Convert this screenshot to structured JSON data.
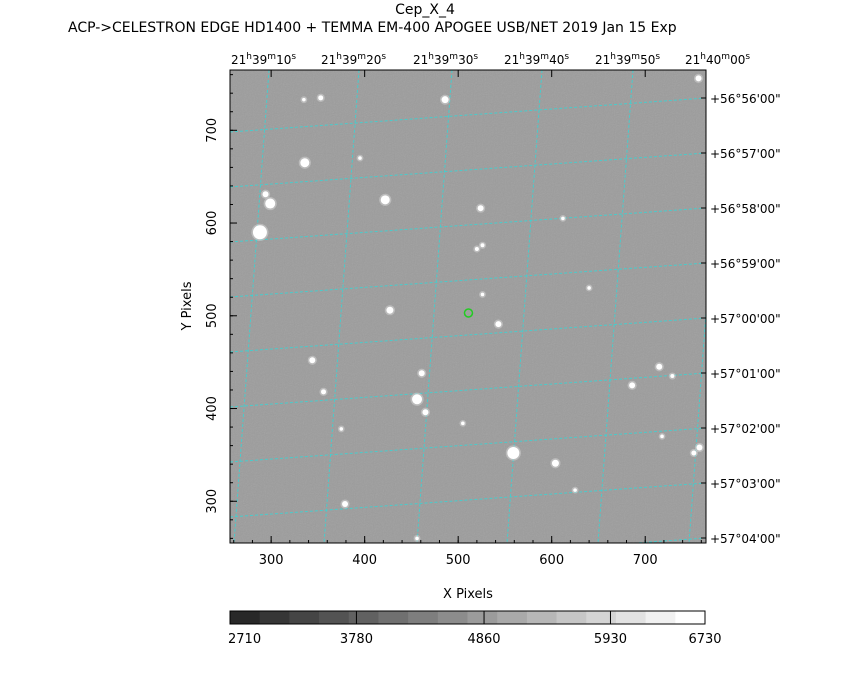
{
  "chart_data": {
    "type": "heatmap",
    "title": "Cep_X_4",
    "subtitle": "ACP->CELESTRON EDGE HD1400 + TEMMA EM-400 APOGEE USB/NET   2019 Jan 15    Exp",
    "xlabel": "X Pixels",
    "ylabel": "Y Pixels",
    "xlim": [
      256,
      765
    ],
    "ylim": [
      255,
      765
    ],
    "x_ticks": [
      300,
      400,
      500,
      600,
      700
    ],
    "y_ticks": [
      300,
      400,
      500,
      600,
      700
    ],
    "ra_labels": [
      {
        "h": "21",
        "m": "39",
        "s": "10"
      },
      {
        "h": "21",
        "m": "39",
        "s": "20"
      },
      {
        "h": "21",
        "m": "39",
        "s": "30"
      },
      {
        "h": "21",
        "m": "39",
        "s": "40"
      },
      {
        "h": "21",
        "m": "39",
        "s": "50"
      },
      {
        "h": "21",
        "m": "40",
        "s": "00"
      }
    ],
    "dec_labels": [
      "+56°56'00\"",
      "+56°57'00\"",
      "+56°58'00\"",
      "+56°59'00\"",
      "+57°00'00\"",
      "+57°01'00\"",
      "+57°02'00\"",
      "+57°03'00\"",
      "+57°04'00\""
    ],
    "colorbar": {
      "tick_labels": [
        "2710",
        "3780",
        "4860",
        "5930",
        "6730"
      ],
      "tick_values": [
        2710,
        3780,
        4860,
        5930,
        6730
      ],
      "range": [
        2710,
        6730
      ],
      "levels": 16
    },
    "target": {
      "x": 511,
      "y": 503
    },
    "stars": [
      {
        "x": 288,
        "y": 590,
        "r": 7
      },
      {
        "x": 299,
        "y": 621,
        "r": 5
      },
      {
        "x": 294,
        "y": 631,
        "r": 3
      },
      {
        "x": 336,
        "y": 665,
        "r": 4.5
      },
      {
        "x": 422,
        "y": 625,
        "r": 4.5
      },
      {
        "x": 486,
        "y": 733,
        "r": 3.5
      },
      {
        "x": 353,
        "y": 735,
        "r": 2.5
      },
      {
        "x": 524,
        "y": 616,
        "r": 3
      },
      {
        "x": 427,
        "y": 506,
        "r": 3.5
      },
      {
        "x": 543,
        "y": 491,
        "r": 3
      },
      {
        "x": 344,
        "y": 452,
        "r": 3
      },
      {
        "x": 356,
        "y": 418,
        "r": 2.5
      },
      {
        "x": 461,
        "y": 438,
        "r": 3
      },
      {
        "x": 456,
        "y": 410,
        "r": 5
      },
      {
        "x": 465,
        "y": 396,
        "r": 3
      },
      {
        "x": 559,
        "y": 352,
        "r": 6
      },
      {
        "x": 604,
        "y": 341,
        "r": 3.5
      },
      {
        "x": 715,
        "y": 445,
        "r": 3
      },
      {
        "x": 686,
        "y": 425,
        "r": 3
      },
      {
        "x": 758,
        "y": 358,
        "r": 3
      },
      {
        "x": 752,
        "y": 352,
        "r": 2.5
      },
      {
        "x": 379,
        "y": 297,
        "r": 3
      },
      {
        "x": 757,
        "y": 756,
        "r": 3
      },
      {
        "x": 729,
        "y": 435,
        "r": 2
      },
      {
        "x": 520,
        "y": 572,
        "r": 2
      },
      {
        "x": 526,
        "y": 576,
        "r": 2
      },
      {
        "x": 335,
        "y": 733,
        "r": 1.8
      },
      {
        "x": 526,
        "y": 523,
        "r": 1.8
      },
      {
        "x": 395,
        "y": 670,
        "r": 1.8
      },
      {
        "x": 612,
        "y": 605,
        "r": 1.8
      },
      {
        "x": 718,
        "y": 370,
        "r": 1.8
      },
      {
        "x": 505,
        "y": 384,
        "r": 1.8
      },
      {
        "x": 375,
        "y": 378,
        "r": 1.8
      },
      {
        "x": 640,
        "y": 530,
        "r": 1.8
      },
      {
        "x": 456,
        "y": 260,
        "r": 1.8
      },
      {
        "x": 625,
        "y": 312,
        "r": 1.8
      }
    ]
  }
}
